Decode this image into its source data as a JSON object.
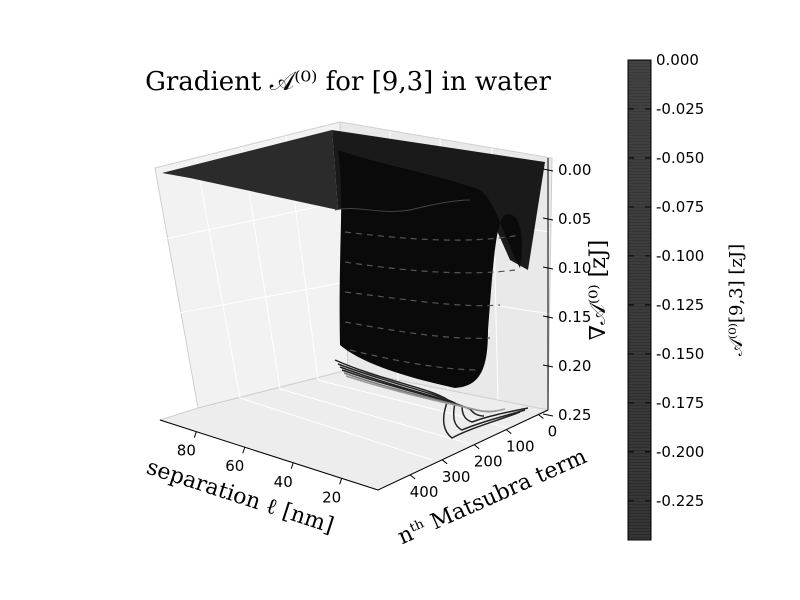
{
  "chart_data": {
    "type": "surface3d",
    "title": "Gradient 𝒜⁽⁰⁾ for [9,3] in water",
    "xlabel": "separation  ℓ  [nm]",
    "ylabel": "nᵗʰ Matsubra term",
    "zlabel": "∇𝒜⁽⁰⁾ [zJ]",
    "x_ticks": [
      "80",
      "60",
      "40",
      "20"
    ],
    "y_ticks": [
      "0",
      "100",
      "200",
      "300",
      "400"
    ],
    "z_ticks": [
      "0.00",
      "0.05",
      "0.10",
      "0.15",
      "0.20",
      "0.25"
    ],
    "xlim": [
      5,
      95
    ],
    "ylim": [
      0,
      500
    ],
    "zlim": [
      -0.25,
      0.0
    ],
    "colorbar": {
      "label": "𝒜⁽⁰⁾[9,3] [zJ]",
      "ticks": [
        "0.000",
        "-0.025",
        "-0.050",
        "-0.075",
        "-0.100",
        "-0.125",
        "-0.150",
        "-0.175",
        "-0.200",
        "-0.225"
      ],
      "values": [
        0.0,
        -0.025,
        -0.05,
        -0.075,
        -0.1,
        -0.125,
        -0.15,
        -0.175,
        -0.2,
        -0.225
      ],
      "min": -0.245,
      "max": 0.0
    },
    "colormap": "gray"
  }
}
